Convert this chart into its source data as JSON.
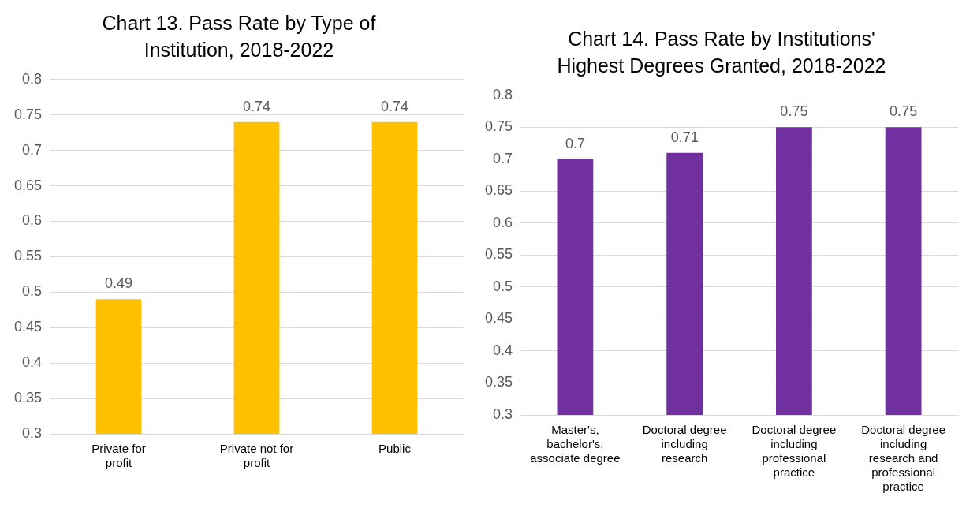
{
  "chart_data": [
    {
      "type": "bar",
      "title": "Chart 13. Pass Rate by Type of Institution, 2018-2022",
      "categories": [
        "Private for profit",
        "Private not for profit",
        "Public"
      ],
      "values": [
        0.49,
        0.74,
        0.74
      ],
      "color": "#ffc000",
      "ylim": [
        0.3,
        0.8
      ],
      "yticks": [
        0.3,
        0.35,
        0.4,
        0.45,
        0.5,
        0.55,
        0.6,
        0.65,
        0.7,
        0.75,
        0.8
      ],
      "grid": "y",
      "data_labels": true,
      "legend": false
    },
    {
      "type": "bar",
      "title": "Chart 14. Pass Rate by Institutions' Highest Degrees Granted, 2018-2022",
      "categories": [
        "Master's, bachelor's, associate degree",
        "Doctoral degree including research",
        "Doctoral degree including professional practice",
        "Doctoral degree including research and professional practice"
      ],
      "values": [
        0.7,
        0.71,
        0.75,
        0.75
      ],
      "color": "#7030a0",
      "ylim": [
        0.3,
        0.8
      ],
      "yticks": [
        0.3,
        0.35,
        0.4,
        0.45,
        0.5,
        0.55,
        0.6,
        0.65,
        0.7,
        0.75,
        0.8
      ],
      "grid": "y",
      "data_labels": true,
      "legend": false
    }
  ]
}
